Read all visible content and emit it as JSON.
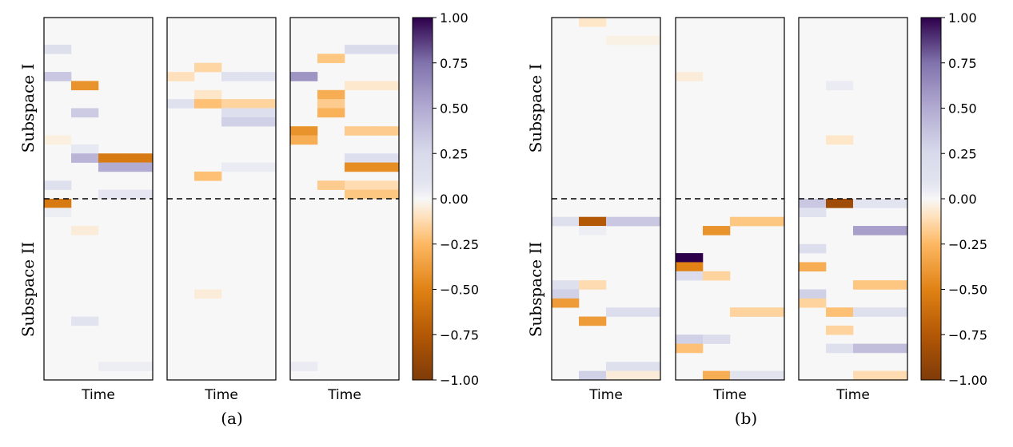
{
  "chart_data": {
    "type": "heatmap",
    "colormap": "PuOr",
    "color_range": [
      -1.0,
      1.0
    ],
    "colorbar_ticks": [
      "1.00",
      "0.75",
      "0.50",
      "0.25",
      "0.00",
      "−0.25",
      "−0.50",
      "−0.75",
      "−1.00"
    ],
    "colorbar_tick_values": [
      1.0,
      0.75,
      0.5,
      0.25,
      0.0,
      -0.25,
      -0.5,
      -0.75,
      -1.0
    ],
    "rows": 40,
    "subspace_split_row": 20,
    "row_labels": [
      "Subspace I",
      "Subspace II"
    ],
    "xlabel": "Time",
    "groups": [
      {
        "caption": "(a)",
        "panels": [
          {
            "cells": [
              {
                "row": 3,
                "col": 0,
                "value": 0.17
              },
              {
                "row": 6,
                "col": 0,
                "value": 0.35
              },
              {
                "row": 7,
                "col": 1,
                "value": -0.42
              },
              {
                "row": 10,
                "col": 1,
                "value": 0.33
              },
              {
                "row": 13,
                "col": 0,
                "value": -0.04
              },
              {
                "row": 14,
                "col": 1,
                "value": 0.06
              },
              {
                "row": 15,
                "col": 1,
                "value": 0.45
              },
              {
                "row": 15,
                "col": 2,
                "value": -0.55
              },
              {
                "row": 15,
                "col": 3,
                "value": -0.55
              },
              {
                "row": 16,
                "col": 2,
                "value": 0.5
              },
              {
                "row": 16,
                "col": 3,
                "value": 0.5
              },
              {
                "row": 18,
                "col": 0,
                "value": 0.15
              },
              {
                "row": 19,
                "col": 2,
                "value": 0.07
              },
              {
                "row": 19,
                "col": 3,
                "value": 0.07
              },
              {
                "row": 20,
                "col": 0,
                "value": -0.55
              },
              {
                "row": 21,
                "col": 0,
                "value": 0.04
              },
              {
                "row": 23,
                "col": 1,
                "value": -0.05
              },
              {
                "row": 33,
                "col": 1,
                "value": 0.1
              },
              {
                "row": 38,
                "col": 2,
                "value": 0.04
              },
              {
                "row": 38,
                "col": 3,
                "value": 0.04
              }
            ]
          },
          {
            "cells": [
              {
                "row": 5,
                "col": 1,
                "value": -0.14
              },
              {
                "row": 6,
                "col": 0,
                "value": -0.1
              },
              {
                "row": 6,
                "col": 2,
                "value": 0.13
              },
              {
                "row": 6,
                "col": 3,
                "value": 0.13
              },
              {
                "row": 8,
                "col": 1,
                "value": -0.08
              },
              {
                "row": 9,
                "col": 0,
                "value": 0.13
              },
              {
                "row": 9,
                "col": 1,
                "value": -0.22
              },
              {
                "row": 9,
                "col": 2,
                "value": -0.15
              },
              {
                "row": 9,
                "col": 3,
                "value": -0.15
              },
              {
                "row": 10,
                "col": 2,
                "value": 0.16
              },
              {
                "row": 10,
                "col": 3,
                "value": 0.16
              },
              {
                "row": 11,
                "col": 2,
                "value": 0.3
              },
              {
                "row": 11,
                "col": 3,
                "value": 0.3
              },
              {
                "row": 16,
                "col": 2,
                "value": 0.05
              },
              {
                "row": 16,
                "col": 3,
                "value": 0.05
              },
              {
                "row": 17,
                "col": 1,
                "value": -0.22
              },
              {
                "row": 30,
                "col": 1,
                "value": -0.05
              }
            ]
          },
          {
            "cells": [
              {
                "row": 3,
                "col": 2,
                "value": 0.22
              },
              {
                "row": 3,
                "col": 3,
                "value": 0.22
              },
              {
                "row": 4,
                "col": 1,
                "value": -0.2
              },
              {
                "row": 6,
                "col": 0,
                "value": 0.6
              },
              {
                "row": 7,
                "col": 2,
                "value": -0.07
              },
              {
                "row": 7,
                "col": 3,
                "value": -0.07
              },
              {
                "row": 8,
                "col": 1,
                "value": -0.3
              },
              {
                "row": 9,
                "col": 1,
                "value": -0.18
              },
              {
                "row": 10,
                "col": 1,
                "value": -0.28
              },
              {
                "row": 12,
                "col": 0,
                "value": -0.42
              },
              {
                "row": 12,
                "col": 2,
                "value": -0.18
              },
              {
                "row": 12,
                "col": 3,
                "value": -0.18
              },
              {
                "row": 13,
                "col": 0,
                "value": -0.3
              },
              {
                "row": 15,
                "col": 2,
                "value": 0.16
              },
              {
                "row": 15,
                "col": 3,
                "value": 0.16
              },
              {
                "row": 16,
                "col": 2,
                "value": -0.45
              },
              {
                "row": 16,
                "col": 3,
                "value": -0.45
              },
              {
                "row": 18,
                "col": 1,
                "value": -0.18
              },
              {
                "row": 18,
                "col": 2,
                "value": -0.12
              },
              {
                "row": 18,
                "col": 3,
                "value": -0.12
              },
              {
                "row": 19,
                "col": 2,
                "value": -0.2
              },
              {
                "row": 19,
                "col": 3,
                "value": -0.2
              },
              {
                "row": 38,
                "col": 0,
                "value": 0.05
              }
            ]
          }
        ]
      },
      {
        "caption": "(b)",
        "panels": [
          {
            "cells": [
              {
                "row": 0,
                "col": 1,
                "value": -0.08
              },
              {
                "row": 2,
                "col": 2,
                "value": -0.03
              },
              {
                "row": 2,
                "col": 3,
                "value": -0.03
              },
              {
                "row": 22,
                "col": 0,
                "value": 0.15
              },
              {
                "row": 22,
                "col": 1,
                "value": -0.75
              },
              {
                "row": 22,
                "col": 2,
                "value": 0.35
              },
              {
                "row": 22,
                "col": 3,
                "value": 0.35
              },
              {
                "row": 23,
                "col": 1,
                "value": 0.04
              },
              {
                "row": 29,
                "col": 0,
                "value": 0.15
              },
              {
                "row": 29,
                "col": 1,
                "value": -0.12
              },
              {
                "row": 30,
                "col": 0,
                "value": 0.3
              },
              {
                "row": 31,
                "col": 0,
                "value": -0.38
              },
              {
                "row": 32,
                "col": 2,
                "value": 0.18
              },
              {
                "row": 32,
                "col": 3,
                "value": 0.18
              },
              {
                "row": 33,
                "col": 1,
                "value": -0.38
              },
              {
                "row": 38,
                "col": 2,
                "value": 0.15
              },
              {
                "row": 38,
                "col": 3,
                "value": 0.15
              },
              {
                "row": 39,
                "col": 1,
                "value": 0.3
              },
              {
                "row": 39,
                "col": 2,
                "value": -0.05
              },
              {
                "row": 39,
                "col": 3,
                "value": -0.05
              }
            ]
          },
          {
            "cells": [
              {
                "row": 6,
                "col": 0,
                "value": -0.05
              },
              {
                "row": 22,
                "col": 2,
                "value": -0.2
              },
              {
                "row": 22,
                "col": 3,
                "value": -0.2
              },
              {
                "row": 23,
                "col": 1,
                "value": -0.42
              },
              {
                "row": 26,
                "col": 0,
                "value": 1.0
              },
              {
                "row": 27,
                "col": 0,
                "value": -0.5
              },
              {
                "row": 28,
                "col": 0,
                "value": 0.2
              },
              {
                "row": 28,
                "col": 1,
                "value": -0.15
              },
              {
                "row": 32,
                "col": 2,
                "value": -0.15
              },
              {
                "row": 32,
                "col": 3,
                "value": -0.15
              },
              {
                "row": 35,
                "col": 0,
                "value": 0.3
              },
              {
                "row": 35,
                "col": 1,
                "value": 0.2
              },
              {
                "row": 36,
                "col": 0,
                "value": -0.22
              },
              {
                "row": 39,
                "col": 1,
                "value": -0.3
              },
              {
                "row": 39,
                "col": 2,
                "value": 0.1
              },
              {
                "row": 39,
                "col": 3,
                "value": 0.1
              }
            ]
          },
          {
            "cells": [
              {
                "row": 7,
                "col": 1,
                "value": 0.05
              },
              {
                "row": 13,
                "col": 1,
                "value": -0.08
              },
              {
                "row": 20,
                "col": 0,
                "value": 0.35
              },
              {
                "row": 20,
                "col": 1,
                "value": -0.85
              },
              {
                "row": 20,
                "col": 2,
                "value": 0.08
              },
              {
                "row": 20,
                "col": 3,
                "value": 0.08
              },
              {
                "row": 21,
                "col": 0,
                "value": 0.12
              },
              {
                "row": 23,
                "col": 2,
                "value": 0.55
              },
              {
                "row": 23,
                "col": 3,
                "value": 0.55
              },
              {
                "row": 25,
                "col": 0,
                "value": 0.18
              },
              {
                "row": 27,
                "col": 0,
                "value": -0.3
              },
              {
                "row": 29,
                "col": 2,
                "value": -0.2
              },
              {
                "row": 29,
                "col": 3,
                "value": -0.2
              },
              {
                "row": 30,
                "col": 0,
                "value": 0.3
              },
              {
                "row": 31,
                "col": 0,
                "value": -0.15
              },
              {
                "row": 32,
                "col": 1,
                "value": -0.22
              },
              {
                "row": 32,
                "col": 2,
                "value": 0.15
              },
              {
                "row": 32,
                "col": 3,
                "value": 0.15
              },
              {
                "row": 34,
                "col": 1,
                "value": -0.15
              },
              {
                "row": 36,
                "col": 1,
                "value": 0.15
              },
              {
                "row": 36,
                "col": 2,
                "value": 0.4
              },
              {
                "row": 36,
                "col": 3,
                "value": 0.4
              },
              {
                "row": 39,
                "col": 2,
                "value": -0.12
              },
              {
                "row": 39,
                "col": 3,
                "value": -0.12
              }
            ]
          }
        ]
      }
    ]
  }
}
